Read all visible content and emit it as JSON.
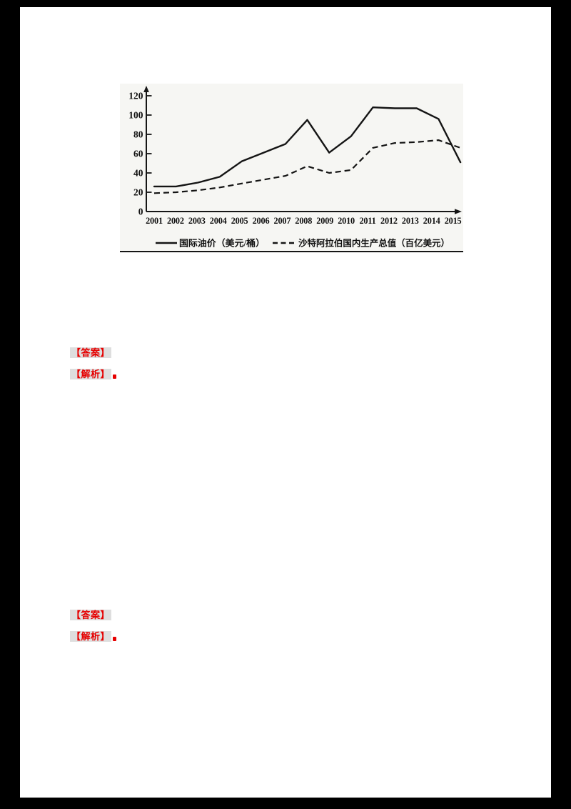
{
  "chart_data": {
    "type": "line",
    "title": "",
    "xlabel": "",
    "ylabel": "",
    "x": [
      "2001",
      "2002",
      "2003",
      "2004",
      "2005",
      "2006",
      "2007",
      "2008",
      "2009",
      "2010",
      "2011",
      "2012",
      "2013",
      "2014",
      "2015"
    ],
    "series": [
      {
        "name": "国际油价（美元/桶）",
        "line_style": "solid",
        "values": [
          26,
          26,
          30,
          36,
          52,
          61,
          70,
          95,
          61,
          78,
          108,
          107,
          107,
          96,
          51
        ]
      },
      {
        "name": "沙特阿拉伯国内生产总值（百亿美元）",
        "line_style": "dashed",
        "values": [
          19,
          20,
          22,
          25,
          29,
          33,
          37,
          47,
          40,
          43,
          66,
          71,
          72,
          74,
          66
        ]
      }
    ],
    "ylim": [
      0,
      120
    ],
    "yticks": [
      0,
      20,
      40,
      60,
      80,
      100,
      120
    ],
    "grid": false,
    "legend_position": "bottom"
  },
  "answers": [
    {
      "answer_label": "【答案】",
      "analysis_label": "【解析】"
    },
    {
      "answer_label": "【答案】",
      "analysis_label": "【解析】"
    }
  ],
  "colors": {
    "page_background": "#000000",
    "paper": "#ffffff",
    "chart_panel": "#f6f6f3",
    "ink": "#161616",
    "red_text": "#e60000",
    "red_highlight_box": "rgba(135,135,135,0.28)"
  }
}
